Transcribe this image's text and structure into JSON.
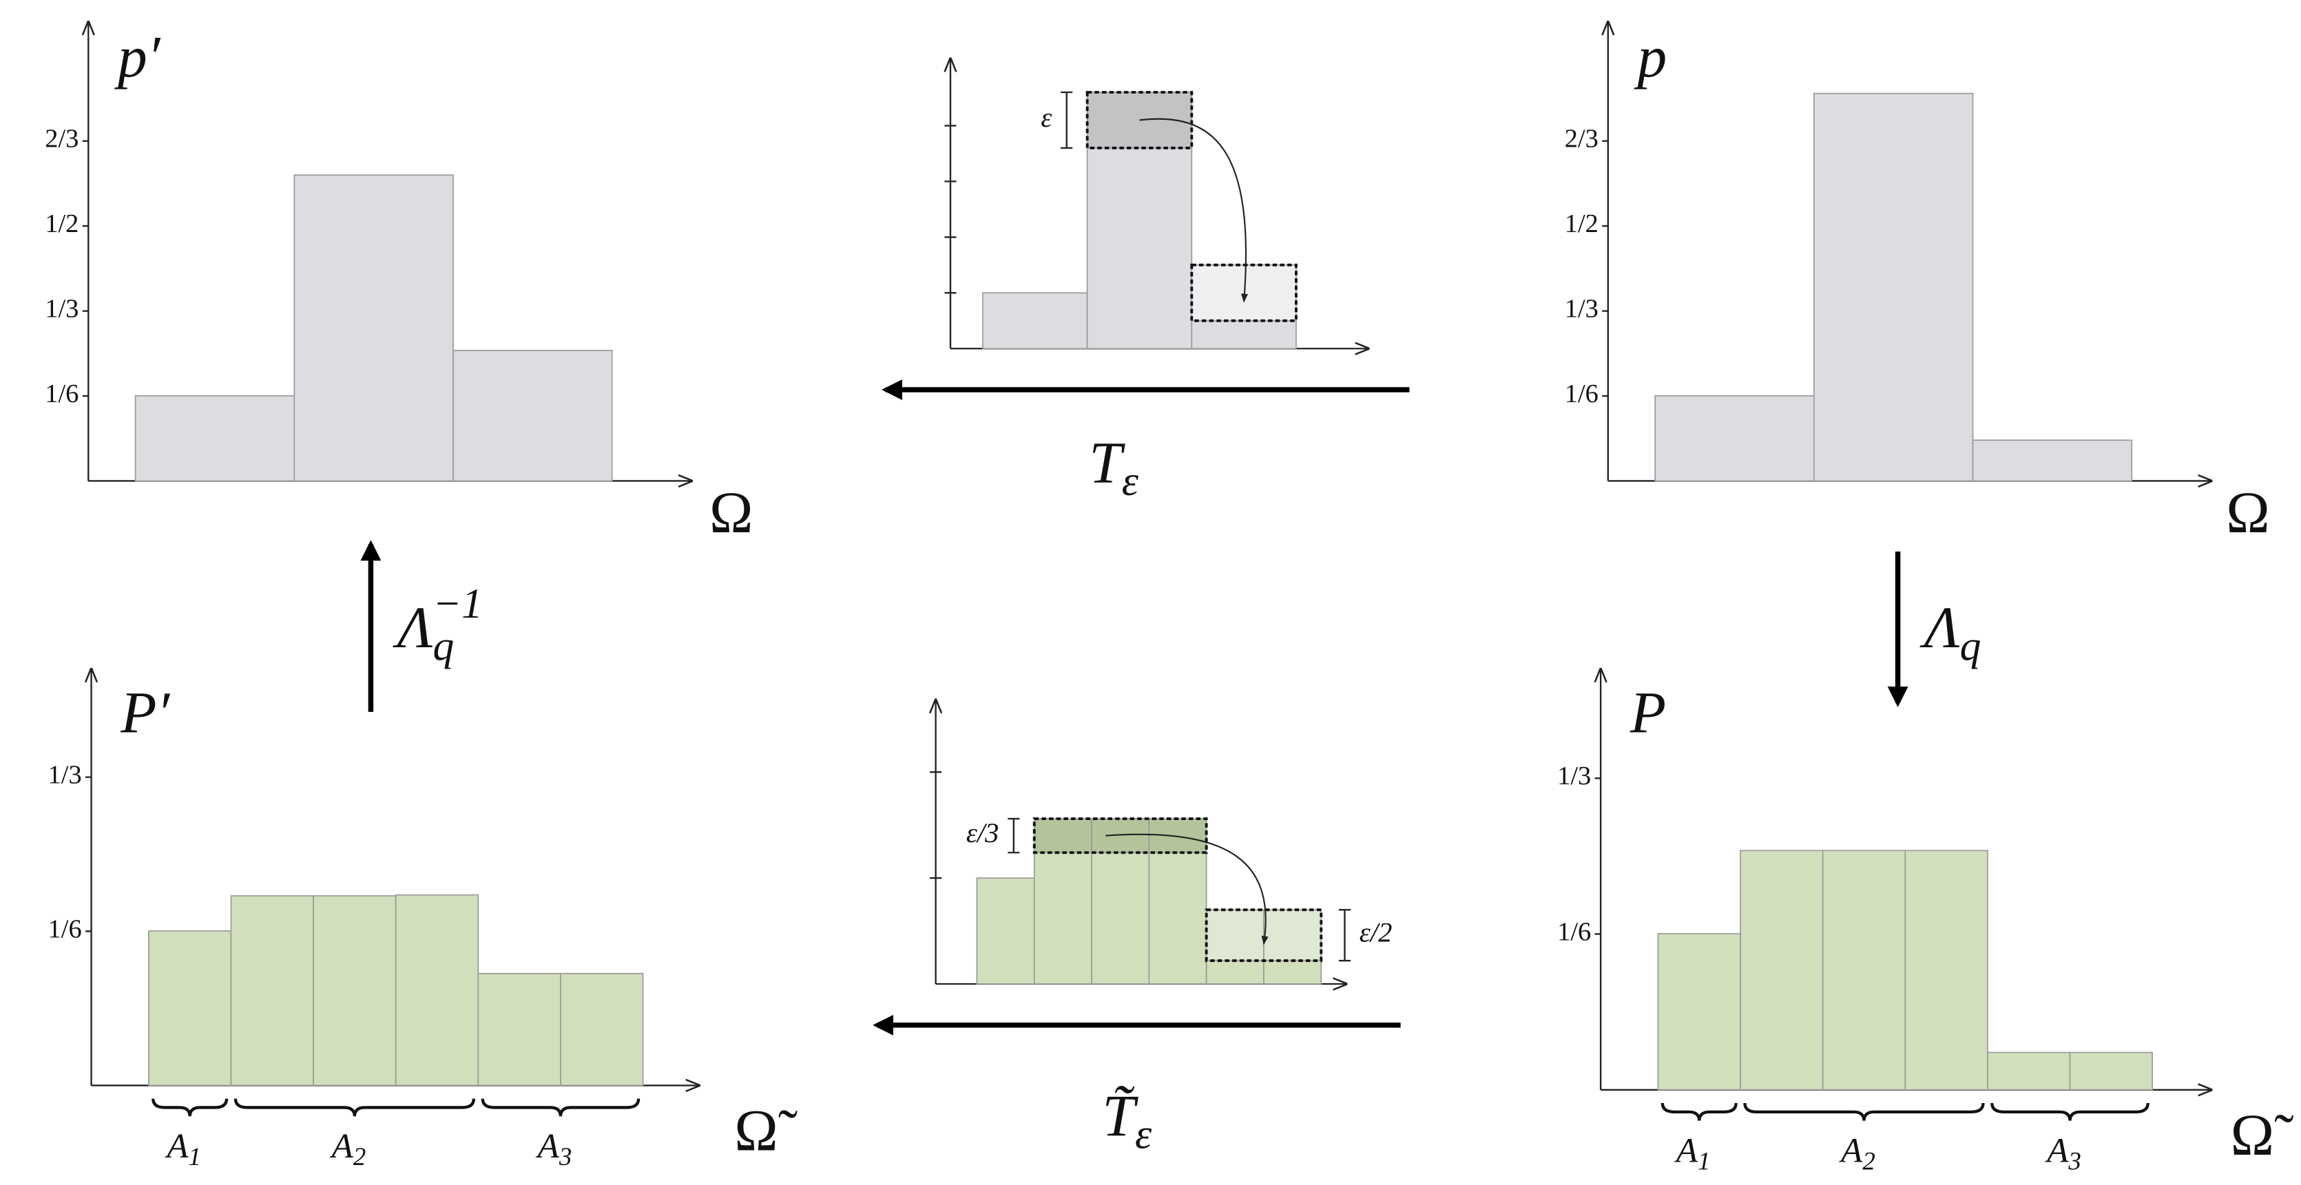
{
  "chart_data": [
    {
      "type": "bar",
      "ylabel": "p′",
      "xlabel": "Ω",
      "color": "#dcdde0",
      "values": [
        0.167,
        0.6,
        0.256
      ],
      "ylim": [
        0,
        0.9
      ],
      "yticks": [
        {
          "value": 0.1667,
          "label": "1/6"
        },
        {
          "value": 0.3333,
          "label": "1/3"
        },
        {
          "value": 0.5,
          "label": "1/2"
        },
        {
          "value": 0.6667,
          "label": "2/3"
        }
      ]
    },
    {
      "type": "bar",
      "color": "#dcdde0",
      "source_color": "#c3c3c6",
      "target_color": "#eeeff1",
      "values": [
        1,
        4.6,
        0.5
      ],
      "ylim": [
        0,
        5.2
      ],
      "yticks": [
        1,
        2,
        3,
        4
      ],
      "epsilon": 1,
      "annotations": [
        "ε"
      ]
    },
    {
      "type": "bar",
      "ylabel": "p",
      "xlabel": "Ω",
      "color": "#dcdde0",
      "values": [
        0.167,
        0.76,
        0.08
      ],
      "ylim": [
        0,
        0.9
      ],
      "yticks": [
        {
          "value": 0.1667,
          "label": "1/6"
        },
        {
          "value": 0.3333,
          "label": "1/3"
        },
        {
          "value": 0.5,
          "label": "1/2"
        },
        {
          "value": 0.6667,
          "label": "2/3"
        }
      ]
    },
    {
      "type": "bar",
      "ylabel": "P′",
      "xlabel": "Ω̃",
      "color": "#d2dfbc",
      "values": [
        0.167,
        0.205,
        0.205,
        0.206,
        0.121,
        0.121
      ],
      "ylim": [
        0,
        0.45
      ],
      "yticks": [
        {
          "value": 0.1667,
          "label": "1/6"
        },
        {
          "value": 0.3333,
          "label": "1/3"
        }
      ],
      "group_labels": [
        {
          "base": "A",
          "sub": "1"
        },
        {
          "base": "A",
          "sub": "2"
        },
        {
          "base": "A",
          "sub": "3"
        }
      ]
    },
    {
      "type": "bar",
      "color": "#d2dfbc",
      "source_color": "#b3c49a",
      "target_color": "#dfe8d3",
      "values": [
        1,
        1.56,
        1.56,
        1.56,
        0.22,
        0.22
      ],
      "ylim": [
        0,
        2.68
      ],
      "yticks": [
        1,
        2
      ],
      "epsilon": 0.96,
      "annotations": [
        "ε/3",
        "ε/2"
      ]
    },
    {
      "type": "bar",
      "ylabel": "P",
      "xlabel": "Ω̃",
      "color": "#d2dfbc",
      "values": [
        0.167,
        0.256,
        0.256,
        0.256,
        0.04,
        0.04
      ],
      "ylim": [
        0,
        0.45
      ],
      "yticks": [
        {
          "value": 0.1667,
          "label": "1/6"
        },
        {
          "value": 0.3333,
          "label": "1/3"
        }
      ],
      "group_labels": [
        {
          "base": "A",
          "sub": "1"
        },
        {
          "base": "A",
          "sub": "2"
        },
        {
          "base": "A",
          "sub": "3"
        }
      ]
    }
  ],
  "arrows": [
    {
      "label": {
        "base": "T",
        "sub": "ε"
      }
    },
    {
      "label": {
        "base": "T̃",
        "sub": "ε"
      }
    },
    {
      "label": {
        "base": "Λ",
        "sub": "q",
        "sup": "−1"
      }
    },
    {
      "label": {
        "base": "Λ",
        "sub": "q"
      }
    }
  ]
}
